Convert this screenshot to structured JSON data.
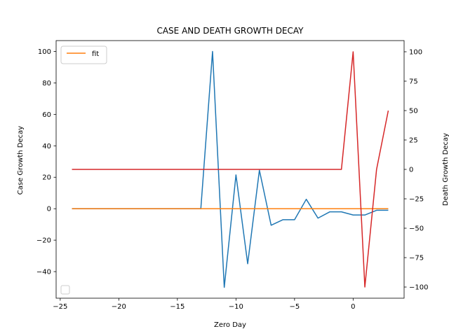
{
  "chart_data": {
    "type": "line",
    "title": "CASE AND DEATH GROWTH DECAY",
    "xlabel": "Zero Day",
    "ylabel_left": "Case Growth Decay",
    "ylabel_right": "Death Growth Decay",
    "xlim": [
      -25.35,
      4.35
    ],
    "ylim_left": [
      -56.9,
      106.9
    ],
    "ylim_right": [
      -109.5,
      109.5
    ],
    "xticks": [
      -25,
      -20,
      -15,
      -10,
      -5,
      0
    ],
    "yticks_left": [
      -40,
      -20,
      0,
      20,
      40,
      60,
      80,
      100
    ],
    "yticks_right": [
      -100,
      -75,
      -50,
      -25,
      0,
      25,
      50,
      75,
      100
    ],
    "grid": false,
    "legend": {
      "position": "top-left",
      "entries": [
        {
          "label": "fit",
          "color": "#ff7f0e"
        }
      ]
    },
    "empty_legend": {
      "position": "bottom-left"
    },
    "series": [
      {
        "axis": "left",
        "color": "#1f77b4",
        "x": [
          -24,
          -23,
          -22,
          -21,
          -20,
          -19,
          -18,
          -17,
          -16,
          -15,
          -14,
          -13,
          -12,
          -11,
          -10,
          -9,
          -8,
          -7,
          -6,
          -5,
          -4,
          -3,
          -2,
          -1,
          0,
          1,
          2,
          3
        ],
        "y": [
          0,
          0,
          0,
          0,
          0,
          0,
          0,
          0,
          0,
          0,
          0,
          0,
          100,
          -50,
          21.5,
          -35,
          24.5,
          -10.5,
          -7,
          -7,
          6,
          -6,
          -2,
          -2,
          -4,
          -4,
          -1,
          -1
        ]
      },
      {
        "axis": "left",
        "name": "fit",
        "color": "#ff7f0e",
        "x": [
          -24,
          3
        ],
        "y": [
          0,
          0
        ]
      },
      {
        "axis": "right",
        "color": "#d62728",
        "x": [
          -24,
          -23,
          -22,
          -21,
          -20,
          -19,
          -18,
          -17,
          -16,
          -15,
          -14,
          -13,
          -12,
          -11,
          -10,
          -9,
          -8,
          -7,
          -6,
          -5,
          -4,
          -3,
          -2,
          -1,
          0,
          1,
          2,
          3
        ],
        "y": [
          0,
          0,
          0,
          0,
          0,
          0,
          0,
          0,
          0,
          0,
          0,
          0,
          0,
          0,
          0,
          0,
          0,
          0,
          0,
          0,
          0,
          0,
          0,
          0,
          100,
          -100,
          0,
          50
        ]
      }
    ]
  }
}
